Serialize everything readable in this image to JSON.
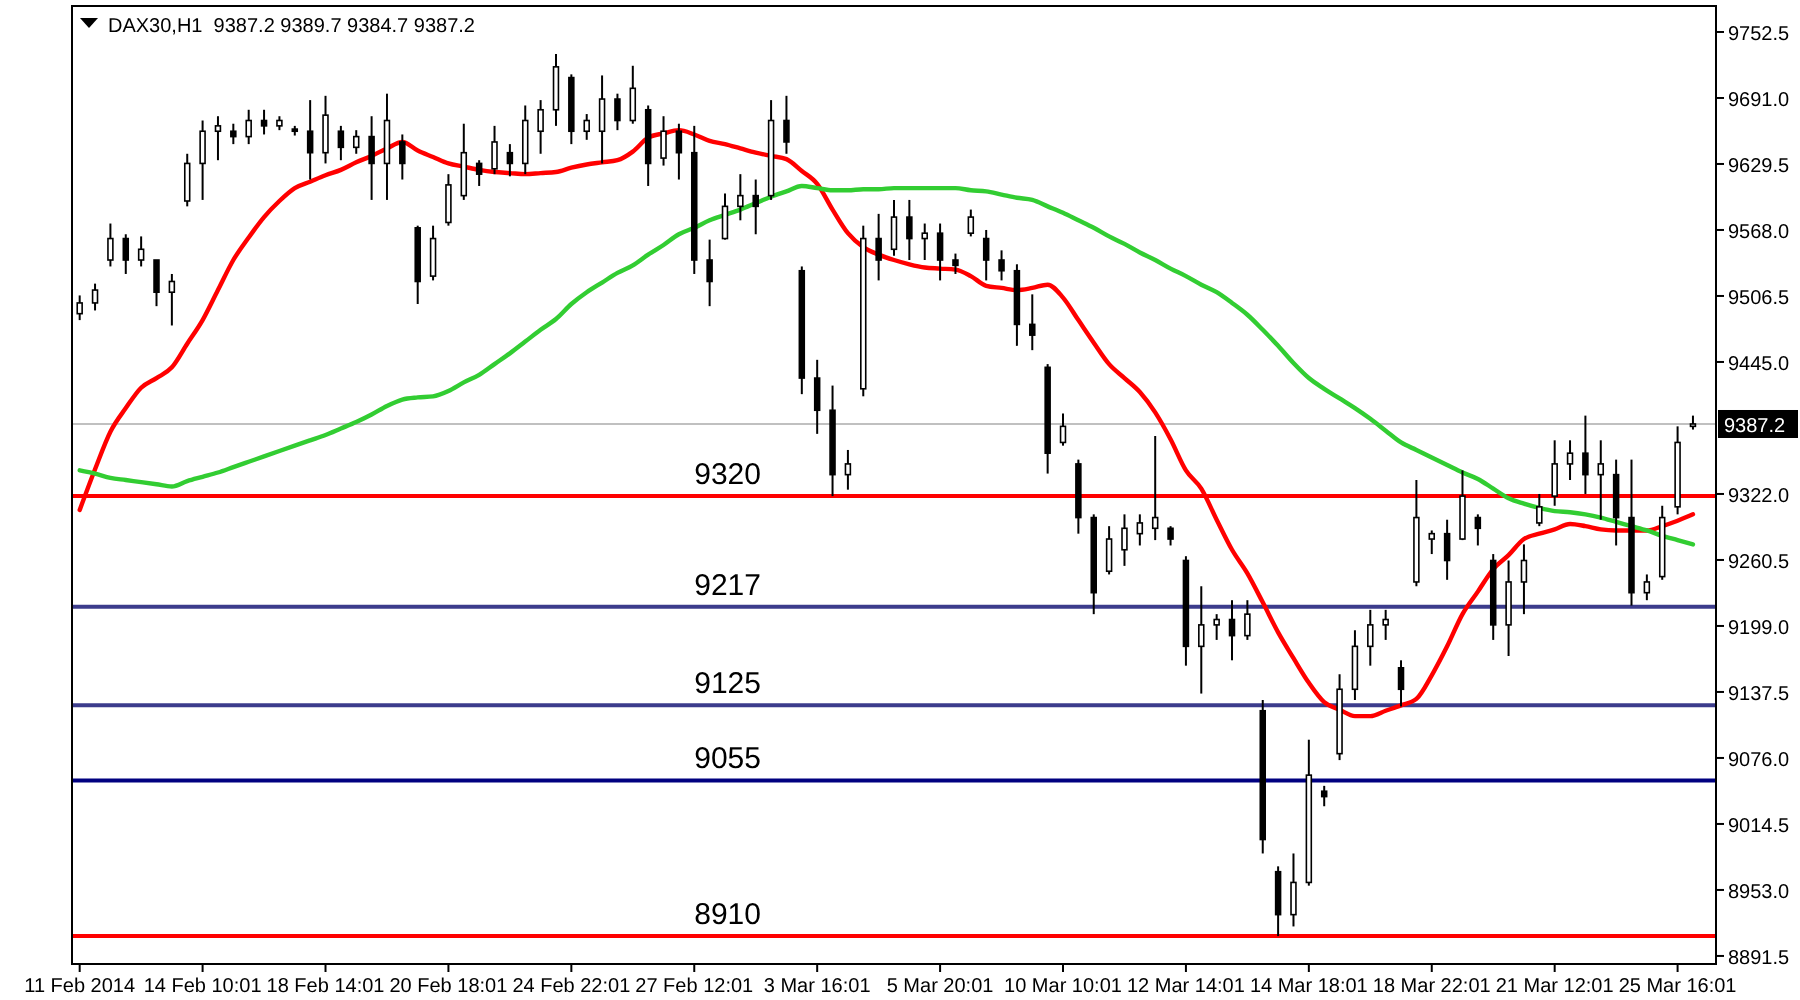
{
  "chart_data": {
    "type": "candlestick",
    "title": "DAX30,H1  9387.2 9389.7 9384.7 9387.2",
    "color": "#000000",
    "categories": [
      "11 Feb 2014",
      null,
      null,
      null,
      null,
      null,
      null,
      null,
      "14 Feb 10:01",
      null,
      null,
      null,
      null,
      null,
      null,
      null,
      "18 Feb 14:01",
      null,
      null,
      null,
      null,
      null,
      null,
      null,
      "20 Feb 18:01",
      null,
      null,
      null,
      null,
      null,
      null,
      null,
      "24 Feb 22:01",
      null,
      null,
      null,
      null,
      null,
      null,
      null,
      "27 Feb 12:01",
      null,
      null,
      null,
      null,
      null,
      null,
      null,
      "3 Mar 16:01",
      null,
      null,
      null,
      null,
      null,
      null,
      null,
      "5 Mar 20:01",
      null,
      null,
      null,
      null,
      null,
      null,
      null,
      "10 Mar 10:01",
      null,
      null,
      null,
      null,
      null,
      null,
      null,
      "12 Mar 14:01",
      null,
      null,
      null,
      null,
      null,
      null,
      null,
      "14 Mar 18:01",
      null,
      null,
      null,
      null,
      null,
      null,
      null,
      "18 Mar 22:01",
      null,
      null,
      null,
      null,
      null,
      null,
      null,
      "21 Mar 12:01",
      null,
      null,
      null,
      null,
      null,
      null,
      null,
      "25 Mar 16:01",
      null
    ],
    "ohlc": [
      [
        9490,
        9507,
        9484,
        9500
      ],
      [
        9500,
        9518,
        9493,
        9512
      ],
      [
        9540,
        9574,
        9534,
        9560
      ],
      [
        9560,
        9564,
        9527,
        9540
      ],
      [
        9540,
        9562,
        9534,
        9550
      ],
      [
        9540,
        9540,
        9497,
        9510
      ],
      [
        9510,
        9527,
        9479,
        9520
      ],
      [
        9595,
        9639,
        9590,
        9630
      ],
      [
        9630,
        9670,
        9596,
        9660
      ],
      [
        9660,
        9674,
        9633,
        9665
      ],
      [
        9660,
        9667,
        9648,
        9655
      ],
      [
        9655,
        9680,
        9648,
        9670
      ],
      [
        9670,
        9680,
        9657,
        9665
      ],
      [
        9665,
        9674,
        9661,
        9670
      ],
      [
        9662,
        9665,
        9656,
        9660
      ],
      [
        9660,
        9689,
        9615,
        9640
      ],
      [
        9640,
        9693,
        9630,
        9675
      ],
      [
        9660,
        9665,
        9633,
        9645
      ],
      [
        9645,
        9661,
        9639,
        9655
      ],
      [
        9655,
        9674,
        9596,
        9630
      ],
      [
        9630,
        9695,
        9596,
        9670
      ],
      [
        9650,
        9657,
        9615,
        9630
      ],
      [
        9570,
        9572,
        9499,
        9520
      ],
      [
        9525,
        9572,
        9521,
        9560
      ],
      [
        9575,
        9620,
        9572,
        9610
      ],
      [
        9600,
        9667,
        9596,
        9640
      ],
      [
        9630,
        9633,
        9609,
        9620
      ],
      [
        9625,
        9665,
        9620,
        9650
      ],
      [
        9640,
        9648,
        9618,
        9630
      ],
      [
        9630,
        9684,
        9620,
        9670
      ],
      [
        9660,
        9689,
        9639,
        9680
      ],
      [
        9680,
        9732,
        9665,
        9720
      ],
      [
        9710,
        9713,
        9648,
        9660
      ],
      [
        9660,
        9676,
        9652,
        9670
      ],
      [
        9660,
        9712,
        9630,
        9690
      ],
      [
        9690,
        9695,
        9661,
        9670
      ],
      [
        9670,
        9721,
        9667,
        9700
      ],
      [
        9680,
        9684,
        9609,
        9630
      ],
      [
        9635,
        9674,
        9628,
        9660
      ],
      [
        9660,
        9667,
        9615,
        9640
      ],
      [
        9640,
        9665,
        9527,
        9540
      ],
      [
        9540,
        9559,
        9497,
        9520
      ],
      [
        9560,
        9602,
        9559,
        9590
      ],
      [
        9590,
        9620,
        9577,
        9600
      ],
      [
        9600,
        9615,
        9564,
        9590
      ],
      [
        9600,
        9689,
        9596,
        9670
      ],
      [
        9670,
        9693,
        9639,
        9650
      ],
      [
        9530,
        9534,
        9415,
        9430
      ],
      [
        9430,
        9447,
        9378,
        9400
      ],
      [
        9400,
        9423,
        9320,
        9340
      ],
      [
        9340,
        9363,
        9326,
        9350
      ],
      [
        9420,
        9572,
        9413,
        9560
      ],
      [
        9560,
        9583,
        9521,
        9540
      ],
      [
        9550,
        9596,
        9544,
        9580
      ],
      [
        9580,
        9596,
        9540,
        9560
      ],
      [
        9560,
        9574,
        9540,
        9565
      ],
      [
        9565,
        9574,
        9521,
        9540
      ],
      [
        9540,
        9546,
        9527,
        9535
      ],
      [
        9565,
        9587,
        9562,
        9580
      ],
      [
        9560,
        9568,
        9521,
        9540
      ],
      [
        9540,
        9549,
        9521,
        9530
      ],
      [
        9530,
        9536,
        9460,
        9480
      ],
      [
        9480,
        9508,
        9456,
        9470
      ],
      [
        9440,
        9443,
        9341,
        9360
      ],
      [
        9370,
        9397,
        9367,
        9385
      ],
      [
        9350,
        9354,
        9285,
        9300
      ],
      [
        9300,
        9303,
        9210,
        9230
      ],
      [
        9250,
        9292,
        9247,
        9280
      ],
      [
        9270,
        9303,
        9255,
        9290
      ],
      [
        9285,
        9303,
        9274,
        9295
      ],
      [
        9290,
        9376,
        9279,
        9300
      ],
      [
        9290,
        9292,
        9274,
        9280
      ],
      [
        9260,
        9264,
        9162,
        9180
      ],
      [
        9180,
        9236,
        9136,
        9200
      ],
      [
        9200,
        9210,
        9186,
        9205
      ],
      [
        9205,
        9223,
        9167,
        9190
      ],
      [
        9190,
        9223,
        9186,
        9210
      ],
      [
        9120,
        9130,
        8987,
        9000
      ],
      [
        8970,
        8975,
        8910,
        8930
      ],
      [
        8930,
        8987,
        8919,
        8960
      ],
      [
        8960,
        9093,
        8957,
        9060
      ],
      [
        9045,
        9050,
        9031,
        9040
      ],
      [
        9080,
        9154,
        9074,
        9140
      ],
      [
        9140,
        9195,
        9130,
        9180
      ],
      [
        9180,
        9214,
        9162,
        9200
      ],
      [
        9200,
        9214,
        9186,
        9205
      ],
      [
        9160,
        9167,
        9124,
        9140
      ],
      [
        9240,
        9335,
        9236,
        9300
      ],
      [
        9280,
        9288,
        9266,
        9285
      ],
      [
        9285,
        9298,
        9242,
        9260
      ],
      [
        9280,
        9344,
        9279,
        9320
      ],
      [
        9300,
        9303,
        9274,
        9290
      ],
      [
        9260,
        9266,
        9186,
        9200
      ],
      [
        9200,
        9260,
        9171,
        9240
      ],
      [
        9240,
        9275,
        9210,
        9260
      ],
      [
        9295,
        9322,
        9292,
        9310
      ],
      [
        9320,
        9372,
        9311,
        9350
      ],
      [
        9350,
        9372,
        9335,
        9360
      ],
      [
        9360,
        9395,
        9322,
        9340
      ],
      [
        9340,
        9372,
        9298,
        9350
      ],
      [
        9340,
        9354,
        9274,
        9300
      ],
      [
        9300,
        9354,
        9218,
        9230
      ],
      [
        9230,
        9247,
        9223,
        9240
      ],
      [
        9245,
        9311,
        9242,
        9300
      ],
      [
        9310,
        9385,
        9303,
        9370
      ],
      [
        9385,
        9395,
        9382,
        9387.2
      ]
    ],
    "series": [
      {
        "type": "line",
        "color": "#ff0000",
        "values": [
          9307,
          9345,
          9380,
          9402,
          9421,
          9430,
          9440,
          9462,
          9484,
          9512,
          9540,
          9561,
          9580,
          9595,
          9607,
          9613,
          9619,
          9624,
          9631,
          9637,
          9644,
          9650,
          9642,
          9636,
          9630,
          9627,
          9624,
          9622,
          9621,
          9620,
          9621,
          9622,
          9626,
          9629,
          9631,
          9633,
          9641,
          9654,
          9658,
          9661,
          9657,
          9651,
          9648,
          9644,
          9640,
          9637,
          9634,
          9623,
          9611,
          9587,
          9565,
          9552,
          9545,
          9540,
          9536,
          9533,
          9532,
          9531,
          9525,
          9516,
          9514,
          9512,
          9514,
          9517,
          9505,
          9484,
          9463,
          9443,
          9430,
          9417,
          9398,
          9373,
          9344,
          9327,
          9298,
          9270,
          9248,
          9221,
          9193,
          9169,
          9146,
          9128,
          9121,
          9115,
          9115,
          9120,
          9125,
          9131,
          9153,
          9180,
          9210,
          9231,
          9252,
          9265,
          9280,
          9285,
          9289,
          9294,
          9292,
          9289,
          9288,
          9288,
          9288,
          9292,
          9297,
          9303
        ]
      },
      {
        "type": "line",
        "color": "#32cd32",
        "values": [
          9344,
          9341,
          9337,
          9335,
          9333,
          9331,
          9329,
          9334,
          9338,
          9342,
          9347,
          9352,
          9357,
          9362,
          9367,
          9372,
          9377,
          9383,
          9389,
          9396,
          9404,
          9410,
          9412,
          9413,
          9418,
          9426,
          9433,
          9443,
          9453,
          9464,
          9475,
          9485,
          9499,
          9510,
          9519,
          9528,
          9535,
          9545,
          9554,
          9564,
          9570,
          9577,
          9582,
          9587,
          9593,
          9599,
          9604,
          9609,
          9607,
          9605,
          9605,
          9606,
          9606,
          9607,
          9607,
          9607,
          9607,
          9607,
          9605,
          9604,
          9601,
          9598,
          9596,
          9590,
          9584,
          9577,
          9570,
          9562,
          9555,
          9547,
          9540,
          9532,
          9525,
          9517,
          9510,
          9500,
          9489,
          9475,
          9460,
          9444,
          9430,
          9420,
          9411,
          9402,
          9392,
          9381,
          9370,
          9363,
          9356,
          9349,
          9342,
          9336,
          9327,
          9318,
          9313,
          9309,
          9306,
          9305,
          9303,
          9300,
          9296,
          9292,
          9288,
          9283,
          9279,
          9275
        ]
      }
    ],
    "ylim": [
      8884,
      9776.7
    ],
    "yticks": [
      {
        "value": 8891.5,
        "label": "8891.5"
      },
      {
        "value": 8953,
        "label": "8953.0"
      },
      {
        "value": 9014.5,
        "label": "9014.5"
      },
      {
        "value": 9076,
        "label": "9076.0"
      },
      {
        "value": 9137.5,
        "label": "9137.5"
      },
      {
        "value": 9199,
        "label": "9199.0"
      },
      {
        "value": 9260.5,
        "label": "9260.5"
      },
      {
        "value": 9322,
        "label": "9322.0"
      },
      {
        "value": 9445,
        "label": "9445.0"
      },
      {
        "value": 9506.5,
        "label": "9506.5"
      },
      {
        "value": 9568,
        "label": "9568.0"
      },
      {
        "value": 9629.5,
        "label": "9629.5"
      },
      {
        "value": 9691,
        "label": "9691.0"
      },
      {
        "value": 9752.5,
        "label": "9752.5"
      }
    ],
    "ref_lines": [
      {
        "axis": "y",
        "value": 9387.2,
        "label": "9387.2",
        "color": "#c0c0c0"
      },
      {
        "axis": "y",
        "value": 9320,
        "label": "9320",
        "color": "#ff0000"
      },
      {
        "axis": "y",
        "value": 9217,
        "label": "9217",
        "color": "#3c3c8c"
      },
      {
        "axis": "y",
        "value": 9125,
        "label": "9125",
        "color": "#3c3c8c"
      },
      {
        "axis": "y",
        "value": 9055,
        "label": "9055",
        "color": "#000080"
      },
      {
        "axis": "y",
        "value": 8910,
        "label": "8910",
        "color": "#ff0000"
      }
    ]
  }
}
